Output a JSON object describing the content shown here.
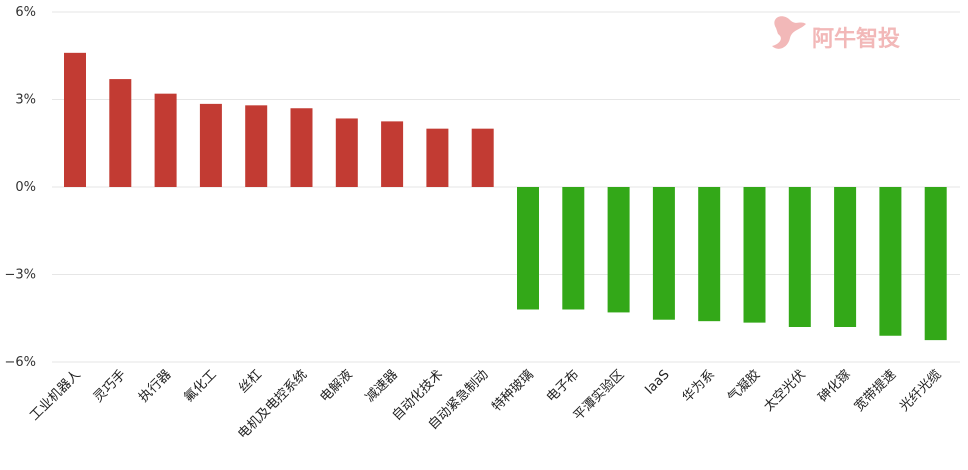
{
  "chart_data": {
    "type": "bar",
    "title": "",
    "xlabel": "",
    "ylabel": "",
    "ylim": [
      -6,
      6
    ],
    "yticks": [
      {
        "value": 6,
        "label": "6%"
      },
      {
        "value": 3,
        "label": "3%"
      },
      {
        "value": 0,
        "label": "0%"
      },
      {
        "value": -3,
        "label": "−3%"
      },
      {
        "value": -6,
        "label": "−6%"
      }
    ],
    "grid": true,
    "categories": [
      "工业机器人",
      "灵巧手",
      "执行器",
      "氟化工",
      "丝杠",
      "电机及电控系统",
      "电解液",
      "减速器",
      "自动化技术",
      "自动紧急制动",
      "特种玻璃",
      "电子布",
      "平潭实验区",
      "IaaS",
      "华为系",
      "气凝胶",
      "太空光伏",
      "砷化镓",
      "宽带提速",
      "光纤光缆"
    ],
    "values": [
      4.6,
      3.7,
      3.2,
      2.85,
      2.8,
      2.7,
      2.35,
      2.25,
      2.0,
      2.0,
      -4.2,
      -4.2,
      -4.3,
      -4.55,
      -4.6,
      -4.65,
      -4.8,
      -4.8,
      -5.1,
      -5.25
    ],
    "colors": {
      "positive": "#c23b33",
      "negative": "#33a818"
    }
  },
  "watermark": {
    "text": "阿牛智投",
    "color": "#f2b8b8"
  }
}
